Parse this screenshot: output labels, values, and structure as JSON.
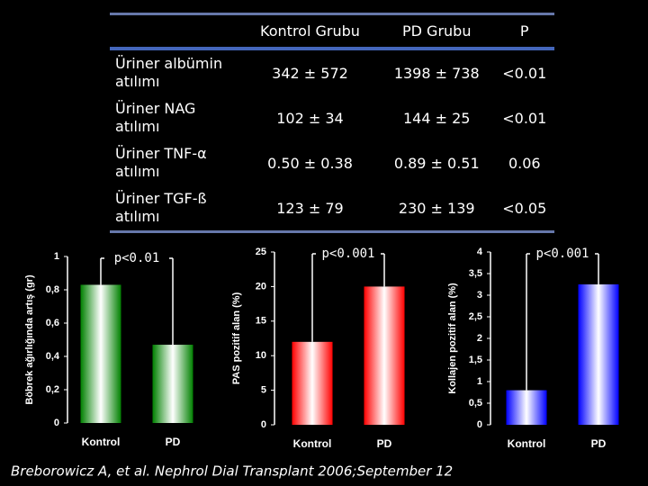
{
  "table": {
    "header": [
      "Kontrol Grubu",
      "PD Grubu",
      "P"
    ],
    "rows": [
      [
        "Üriner albümin atılımı",
        "342 ± 572",
        "1398 ± 738",
        "<0.01"
      ],
      [
        "Üriner NAG atılımı",
        "102 ± 34",
        "144 ± 25",
        "<0.01"
      ],
      [
        "Üriner TNF-α atılımı",
        "0.50 ± 0.38",
        "0.89 ± 0.51",
        "0.06"
      ],
      [
        "Üriner TGF-ß atılımı",
        "123 ± 79",
        "230 ± 139",
        "<0.05"
      ]
    ]
  },
  "chart_data": [
    {
      "type": "bar",
      "ylabel": "Böbrek ağırlığında artış (gr)",
      "categories": [
        "Kontrol",
        "PD"
      ],
      "values": [
        0.83,
        0.47
      ],
      "color": "#008000",
      "ylim": [
        0,
        1
      ],
      "yticks": [
        0,
        {
          "value": 0.2,
          "label": "0,2"
        },
        {
          "value": 0.4,
          "label": "0,4"
        },
        {
          "value": 0.6,
          "label": "0,6"
        },
        {
          "value": 0.8,
          "label": "0,8"
        },
        1
      ],
      "annotation": "p<0.01"
    },
    {
      "type": "bar",
      "ylabel": "PAS pozitif alan (%)",
      "categories": [
        "Kontrol",
        "PD"
      ],
      "values": [
        12,
        20
      ],
      "color": "#ff0000",
      "ylim": [
        0,
        25
      ],
      "yticks": [
        0,
        5,
        10,
        15,
        20,
        25
      ],
      "annotation": "p<0.001"
    },
    {
      "type": "bar",
      "ylabel": "Kollajen pozitif alan (%)",
      "categories": [
        "Kontrol",
        "PD"
      ],
      "values": [
        0.8,
        3.25
      ],
      "color": "#0000ff",
      "ylim": [
        0,
        4
      ],
      "yticks": [
        0,
        {
          "value": 0.5,
          "label": "0,5"
        },
        1,
        {
          "value": 1.5,
          "label": "1,5"
        },
        2,
        {
          "value": 2.5,
          "label": "2,5"
        },
        3,
        {
          "value": 3.5,
          "label": "3,5"
        },
        4
      ],
      "annotation": "p<0.001"
    }
  ],
  "footer": "Breborowicz A, et al. Nephrol Dial Transplant 2006;September 12"
}
